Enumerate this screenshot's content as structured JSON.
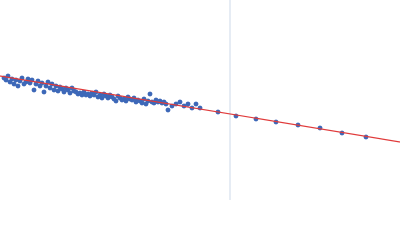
{
  "chart_data": {
    "type": "scatter",
    "xlim": [
      0,
      400
    ],
    "ylim": [
      0,
      200
    ],
    "x": [
      4,
      6,
      8,
      10,
      12,
      14,
      16,
      18,
      20,
      22,
      24,
      26,
      28,
      30,
      32,
      34,
      36,
      38,
      40,
      42,
      44,
      46,
      48,
      50,
      52,
      54,
      56,
      58,
      60,
      62,
      64,
      66,
      68,
      70,
      72,
      74,
      76,
      78,
      80,
      82,
      84,
      86,
      88,
      90,
      92,
      94,
      96,
      98,
      100,
      102,
      104,
      106,
      108,
      110,
      112,
      114,
      116,
      118,
      120,
      122,
      124,
      126,
      128,
      130,
      132,
      134,
      136,
      138,
      140,
      142,
      144,
      146,
      148,
      150,
      152,
      154,
      156,
      158,
      160,
      162,
      164,
      166,
      168,
      172,
      176,
      180,
      184,
      188,
      192,
      196,
      200,
      218,
      236,
      256,
      276,
      298,
      320,
      342,
      366
    ],
    "y": [
      122,
      120,
      124,
      118,
      121,
      116,
      120,
      114,
      119,
      122,
      116,
      118,
      121,
      117,
      120,
      110,
      116,
      119,
      114,
      117,
      108,
      114,
      118,
      112,
      116,
      110,
      114,
      109,
      113,
      111,
      108,
      112,
      110,
      107,
      112,
      109,
      108,
      106,
      107,
      105,
      108,
      105,
      106,
      104,
      107,
      105,
      108,
      103,
      105,
      102,
      106,
      104,
      102,
      105,
      103,
      101,
      99,
      104,
      102,
      100,
      101,
      99,
      103,
      101,
      100,
      102,
      98,
      100,
      99,
      97,
      101,
      96,
      99,
      106,
      98,
      97,
      100,
      98,
      99,
      97,
      98,
      96,
      90,
      94,
      96,
      98,
      94,
      96,
      92,
      96,
      92,
      88,
      84,
      81,
      78,
      75,
      72,
      67,
      63
    ],
    "color": "#3d68b8",
    "fit": {
      "x": [
        0,
        400
      ],
      "y": [
        124,
        58
      ],
      "color": "#e03a3a"
    },
    "vline": {
      "x": 230,
      "color": "#cdd8ea"
    }
  }
}
